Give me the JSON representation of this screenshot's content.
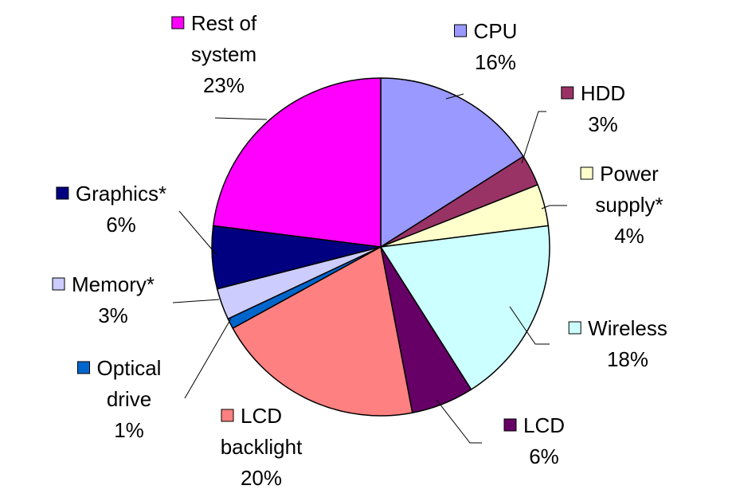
{
  "chart_data": {
    "type": "pie",
    "title": "",
    "start_angle_deg": 0,
    "direction": "clockwise",
    "legend_placement": "labels-around-pie",
    "slices": [
      {
        "label": [
          "CPU"
        ],
        "pct_label": "16%",
        "value": 16,
        "color": "#9999ff"
      },
      {
        "label": [
          "HDD"
        ],
        "pct_label": "3%",
        "value": 3,
        "color": "#993366"
      },
      {
        "label": [
          "Power",
          "supply*"
        ],
        "pct_label": "4%",
        "value": 4,
        "color": "#ffffcc"
      },
      {
        "label": [
          "Wireless"
        ],
        "pct_label": "18%",
        "value": 18,
        "color": "#ccffff"
      },
      {
        "label": [
          "LCD"
        ],
        "pct_label": "6%",
        "value": 6,
        "color": "#660066"
      },
      {
        "label": [
          "LCD",
          "backlight"
        ],
        "pct_label": "20%",
        "value": 20,
        "color": "#ff8080"
      },
      {
        "label": [
          "Optical",
          "drive"
        ],
        "pct_label": "1%",
        "value": 1,
        "color": "#0066cc"
      },
      {
        "label": [
          "Memory*"
        ],
        "pct_label": "3%",
        "value": 3,
        "color": "#ccccff"
      },
      {
        "label": [
          "Graphics*"
        ],
        "pct_label": "6%",
        "value": 6,
        "color": "#000080"
      },
      {
        "label": [
          "Rest of",
          "system"
        ],
        "pct_label": "23%",
        "value": 23,
        "color": "#ff00ff"
      }
    ]
  }
}
